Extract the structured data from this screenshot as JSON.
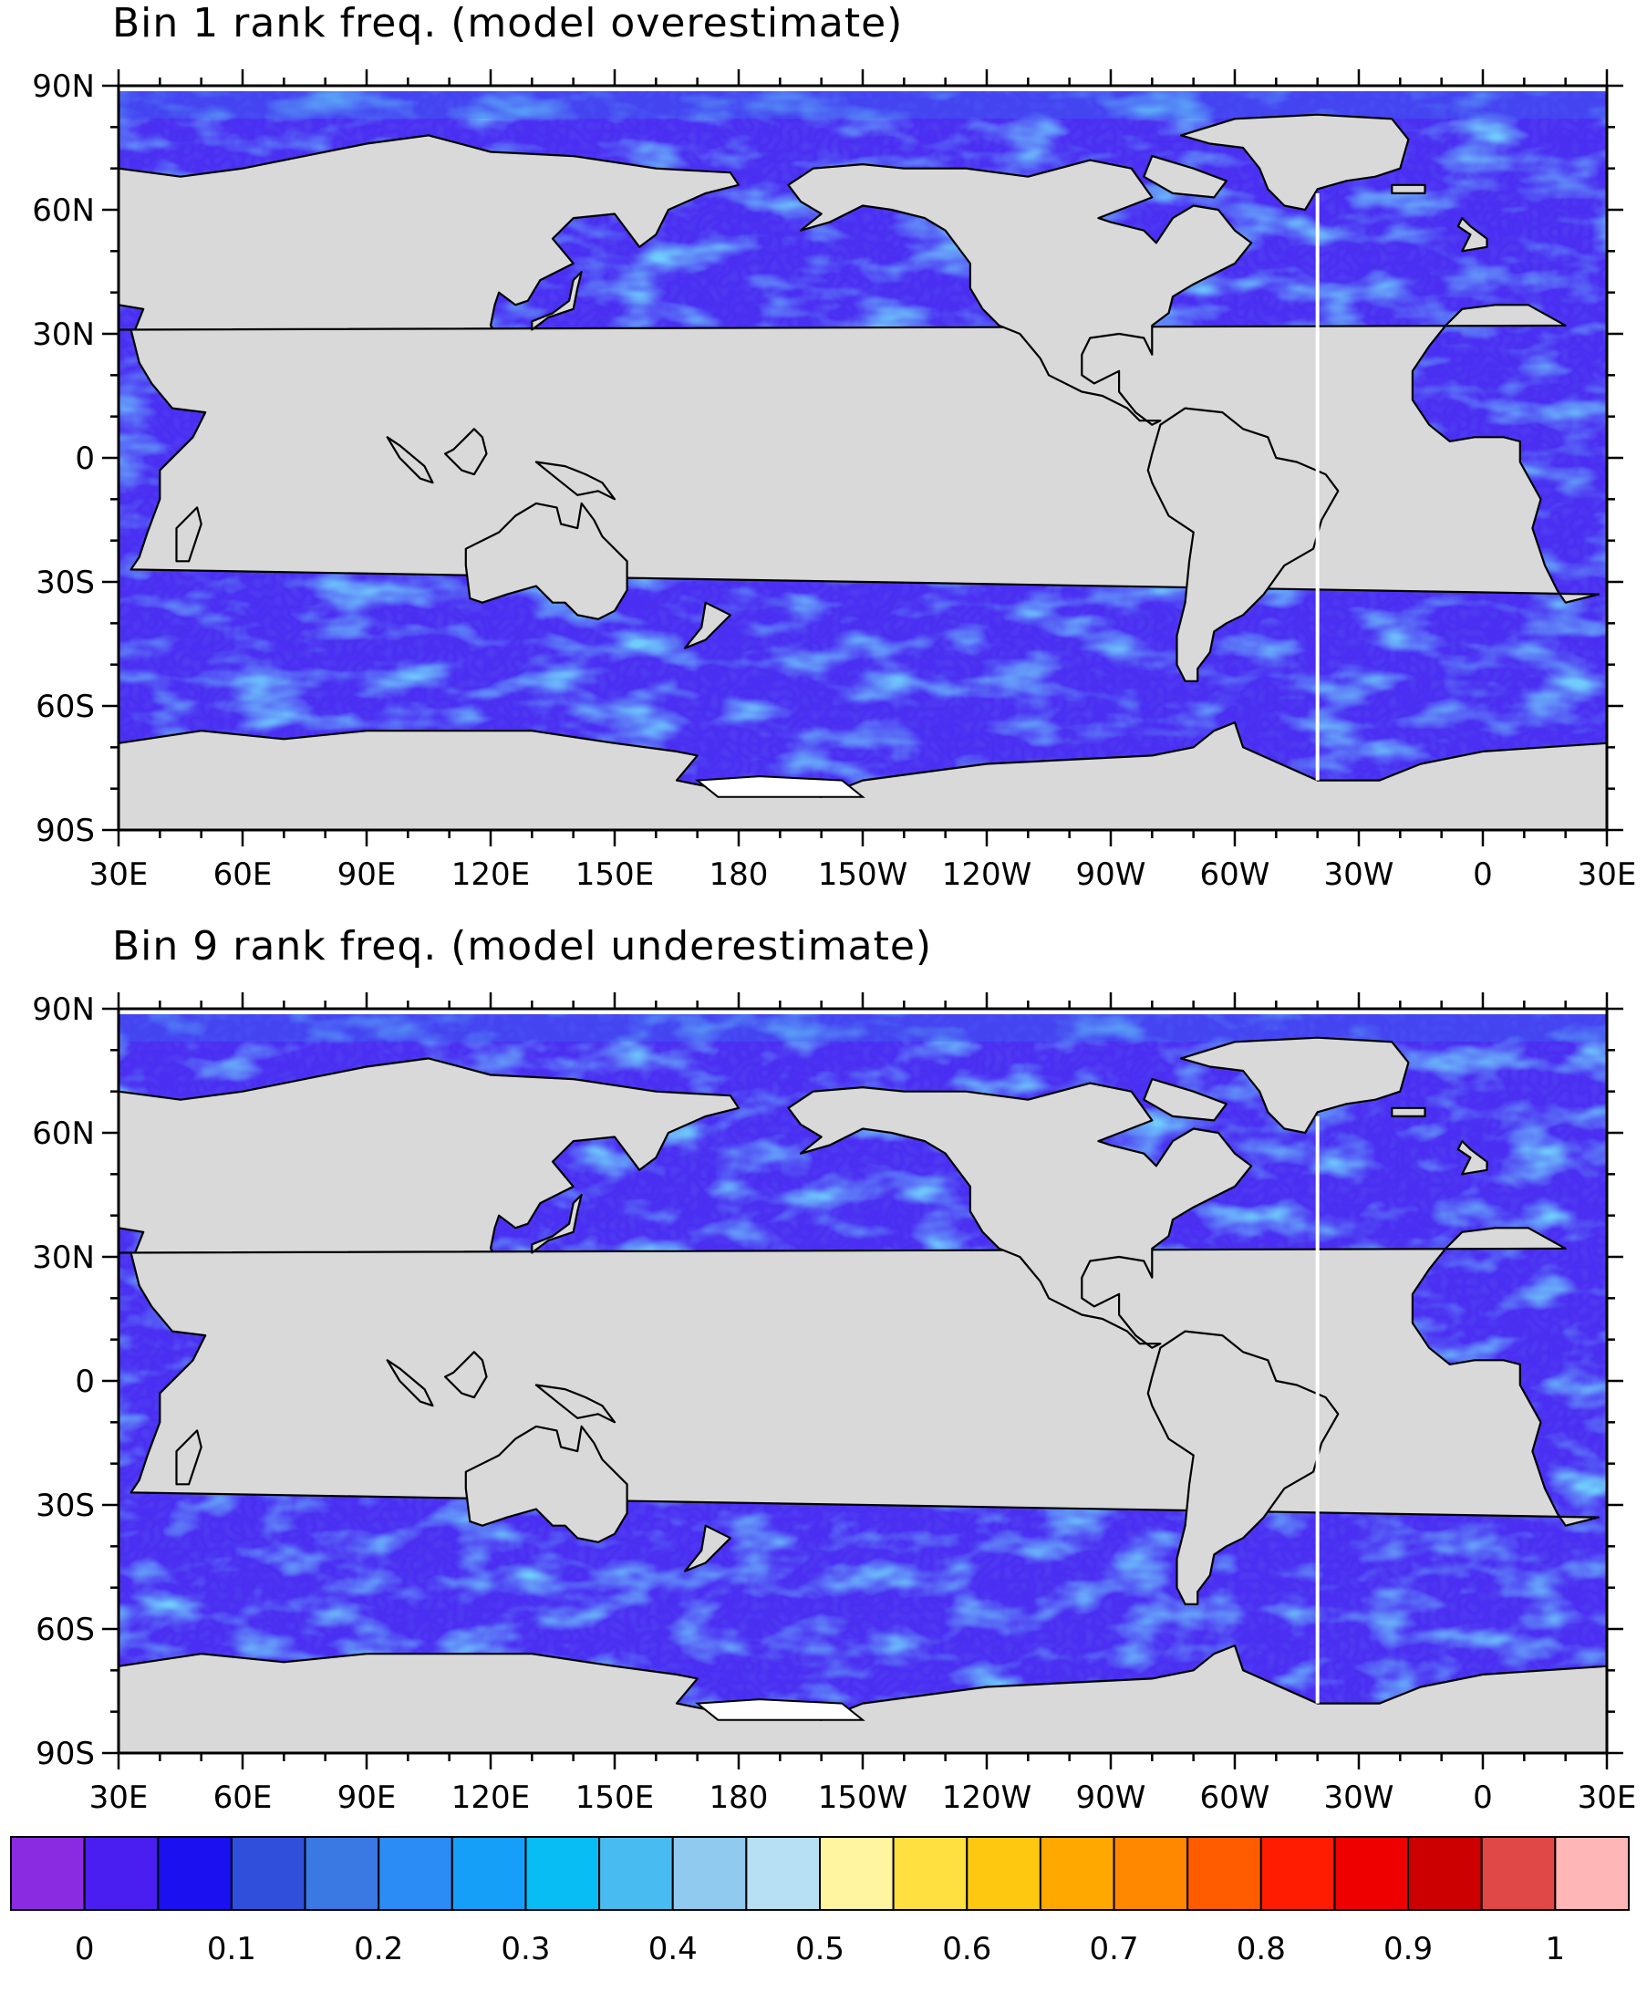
{
  "maps": [
    {
      "title": "Bin 1 rank freq. (model overestimate)",
      "lat_labels": [
        "90N",
        "60N",
        "30N",
        "0",
        "30S",
        "60S",
        "90S"
      ],
      "lon_labels": [
        "30E",
        "60E",
        "90E",
        "120E",
        "150E",
        "180",
        "150W",
        "120W",
        "90W",
        "60W",
        "30W",
        "0",
        "30E"
      ],
      "field": {
        "background_level": 0.1,
        "highlight_regions": [
          "tropical South Pacific",
          "South Atlantic",
          "Southern Ocean",
          "North Atlantic"
        ]
      }
    },
    {
      "title": "Bin 9 rank freq. (model underestimate)",
      "lat_labels": [
        "90N",
        "60N",
        "30N",
        "0",
        "30S",
        "60S",
        "90S"
      ],
      "lon_labels": [
        "30E",
        "60E",
        "90E",
        "120E",
        "150E",
        "180",
        "150W",
        "120W",
        "90W",
        "60W",
        "30W",
        "0",
        "30E"
      ],
      "field": {
        "background_level": 0.1,
        "highlight_regions": [
          "subtropical North Pacific",
          "tropical East Pacific",
          "South Pacific",
          "South Atlantic"
        ]
      }
    }
  ],
  "colorbar": {
    "labels": [
      "0",
      "0.1",
      "0.2",
      "0.3",
      "0.4",
      "0.5",
      "0.6",
      "0.7",
      "0.8",
      "0.9",
      "1"
    ],
    "colors": [
      "#8a2be2",
      "#4a1ef0",
      "#1a10f0",
      "#3050dc",
      "#3a78e4",
      "#2a8cf4",
      "#169ff8",
      "#08bcf4",
      "#48bcf0",
      "#90caee",
      "#b8e0f4",
      "#fff4a0",
      "#ffe040",
      "#ffc810",
      "#ffa800",
      "#ff8800",
      "#ff5c00",
      "#ff1c00",
      "#ee0000",
      "#cc0000",
      "#e04848",
      "#ffb6b6"
    ]
  },
  "colors": {
    "land": "#d9d9d9",
    "ocean_base": "#4a2ef2",
    "ocean_mid": "#3a6ef0",
    "ocean_light": "#2aa8f4"
  }
}
